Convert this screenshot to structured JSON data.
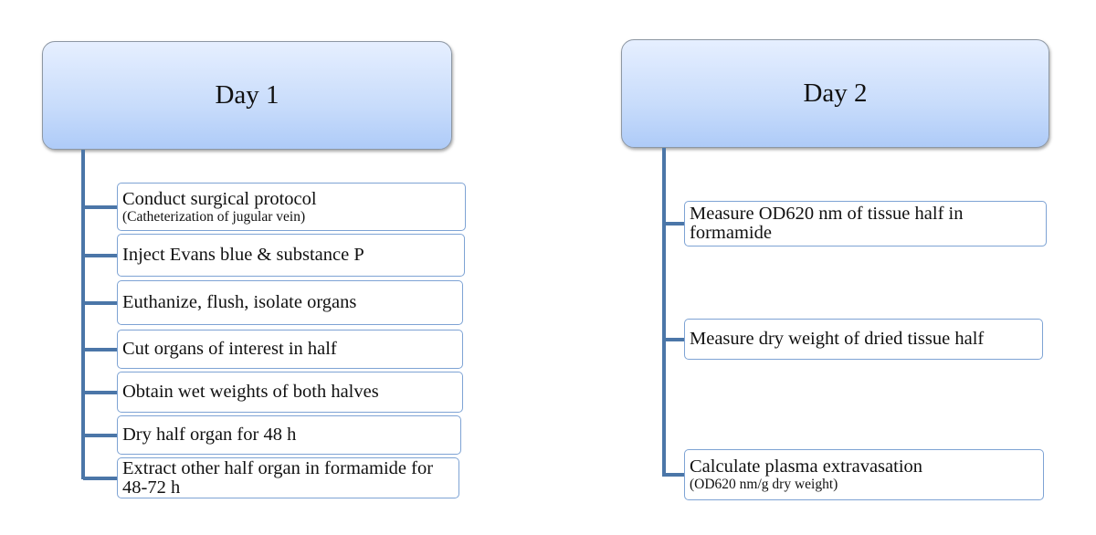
{
  "day1": {
    "title": "Day 1",
    "steps": [
      {
        "text": "Conduct surgical protocol",
        "sub": "(Catheterization of jugular vein)"
      },
      {
        "text": "Inject Evans blue & substance P"
      },
      {
        "text": "Euthanize, flush, isolate organs"
      },
      {
        "text": "Cut organs of interest in half"
      },
      {
        "text": "Obtain wet weights of both halves"
      },
      {
        "text": "Dry half organ for 48 h"
      },
      {
        "text": "Extract other half organ in formamide for 48-72 h"
      }
    ]
  },
  "day2": {
    "title": "Day 2",
    "steps": [
      {
        "text": "Measure OD620 nm of tissue half in formamide"
      },
      {
        "text": "Measure dry weight of dried tissue half"
      },
      {
        "text": "Calculate plasma extravasation",
        "sub": "(OD620 nm/g dry weight)"
      }
    ]
  },
  "colors": {
    "connector": "#4b76a8",
    "header_fill": "#c8dcfb",
    "box_border": "#7ea3d4"
  }
}
